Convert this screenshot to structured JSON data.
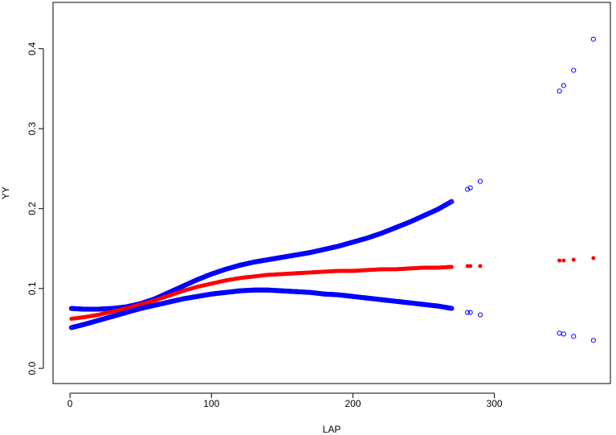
{
  "chart_data": {
    "type": "scatter",
    "title": "",
    "xlabel": "LAP",
    "ylabel": "YY",
    "xlim": [
      -12,
      382
    ],
    "ylim": [
      -0.019,
      0.458
    ],
    "x_ticks": [
      0,
      100,
      200,
      300
    ],
    "y_ticks": [
      0.0,
      0.1,
      0.2,
      0.3,
      0.4
    ],
    "x_tick_labels": [
      "0",
      "100",
      "200",
      "300"
    ],
    "y_tick_labels": [
      "0.0",
      "0.1",
      "0.2",
      "0.3",
      "0.4"
    ],
    "grid": false,
    "legend": "none",
    "series": [
      {
        "role": "upper-bound",
        "color": "#0000ff",
        "marker": "open-circle",
        "curve": [
          [
            1,
            0.075
          ],
          [
            10,
            0.074
          ],
          [
            20,
            0.074
          ],
          [
            30,
            0.075
          ],
          [
            40,
            0.077
          ],
          [
            50,
            0.081
          ],
          [
            60,
            0.087
          ],
          [
            70,
            0.095
          ],
          [
            80,
            0.103
          ],
          [
            90,
            0.111
          ],
          [
            100,
            0.118
          ],
          [
            110,
            0.124
          ],
          [
            120,
            0.129
          ],
          [
            130,
            0.133
          ],
          [
            140,
            0.136
          ],
          [
            150,
            0.139
          ],
          [
            160,
            0.142
          ],
          [
            170,
            0.145
          ],
          [
            180,
            0.149
          ],
          [
            190,
            0.153
          ],
          [
            200,
            0.158
          ],
          [
            210,
            0.163
          ],
          [
            220,
            0.169
          ],
          [
            230,
            0.176
          ],
          [
            240,
            0.183
          ],
          [
            250,
            0.191
          ],
          [
            260,
            0.199
          ],
          [
            270,
            0.209
          ]
        ],
        "points": [
          [
            281,
            0.224
          ],
          [
            283,
            0.226
          ],
          [
            290,
            0.234
          ],
          [
            346,
            0.347
          ],
          [
            349,
            0.354
          ],
          [
            356,
            0.373
          ],
          [
            370,
            0.412
          ]
        ]
      },
      {
        "role": "fit",
        "color": "#ff0000",
        "marker": "filled-circle",
        "curve": [
          [
            1,
            0.062
          ],
          [
            10,
            0.064
          ],
          [
            20,
            0.067
          ],
          [
            30,
            0.071
          ],
          [
            40,
            0.075
          ],
          [
            50,
            0.08
          ],
          [
            60,
            0.085
          ],
          [
            70,
            0.091
          ],
          [
            80,
            0.097
          ],
          [
            90,
            0.102
          ],
          [
            100,
            0.106
          ],
          [
            110,
            0.11
          ],
          [
            120,
            0.113
          ],
          [
            130,
            0.115
          ],
          [
            140,
            0.117
          ],
          [
            150,
            0.118
          ],
          [
            160,
            0.119
          ],
          [
            170,
            0.12
          ],
          [
            180,
            0.121
          ],
          [
            190,
            0.122
          ],
          [
            200,
            0.122
          ],
          [
            210,
            0.123
          ],
          [
            220,
            0.124
          ],
          [
            230,
            0.124
          ],
          [
            240,
            0.125
          ],
          [
            250,
            0.126
          ],
          [
            260,
            0.126
          ],
          [
            270,
            0.127
          ]
        ],
        "points": [
          [
            281,
            0.128
          ],
          [
            283,
            0.128
          ],
          [
            290,
            0.128
          ],
          [
            346,
            0.135
          ],
          [
            349,
            0.135
          ],
          [
            356,
            0.136
          ],
          [
            370,
            0.138
          ]
        ]
      },
      {
        "role": "lower-bound",
        "color": "#0000ff",
        "marker": "open-circle",
        "curve": [
          [
            1,
            0.051
          ],
          [
            10,
            0.055
          ],
          [
            20,
            0.06
          ],
          [
            30,
            0.065
          ],
          [
            40,
            0.07
          ],
          [
            50,
            0.075
          ],
          [
            60,
            0.079
          ],
          [
            70,
            0.083
          ],
          [
            80,
            0.087
          ],
          [
            90,
            0.09
          ],
          [
            100,
            0.093
          ],
          [
            110,
            0.095
          ],
          [
            120,
            0.097
          ],
          [
            130,
            0.098
          ],
          [
            140,
            0.098
          ],
          [
            150,
            0.097
          ],
          [
            160,
            0.096
          ],
          [
            170,
            0.095
          ],
          [
            180,
            0.093
          ],
          [
            190,
            0.092
          ],
          [
            200,
            0.09
          ],
          [
            210,
            0.088
          ],
          [
            220,
            0.086
          ],
          [
            230,
            0.084
          ],
          [
            240,
            0.082
          ],
          [
            250,
            0.08
          ],
          [
            260,
            0.078
          ],
          [
            270,
            0.075
          ]
        ],
        "points": [
          [
            281,
            0.07
          ],
          [
            283,
            0.07
          ],
          [
            290,
            0.067
          ],
          [
            346,
            0.044
          ],
          [
            349,
            0.043
          ],
          [
            356,
            0.04
          ],
          [
            370,
            0.035
          ]
        ]
      }
    ]
  }
}
